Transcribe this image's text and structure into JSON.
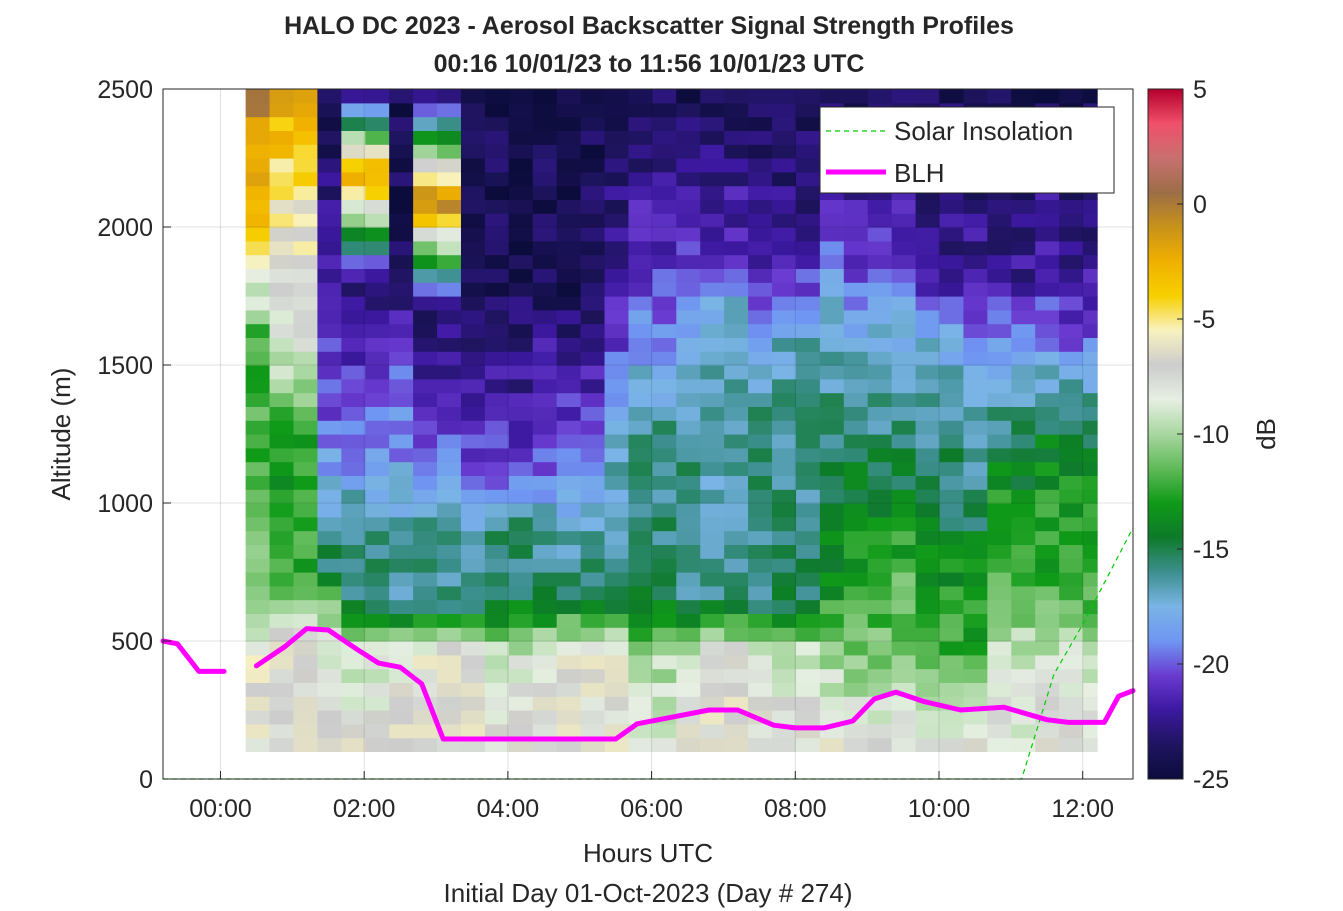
{
  "chart_data": {
    "type": "heatmap",
    "title": "HALO DC 2023 - Aerosol Backscatter Signal Strength Profiles",
    "subtitle": "00:16 10/01/23 to 11:56 10/01/23  UTC",
    "xlabel": "Hours UTC",
    "xlabel2": "Initial Day 01-Oct-2023 (Day # 274)",
    "ylabel": "Altitude (m)",
    "xlim_hours": [
      -0.8,
      12.7
    ],
    "ylim": [
      0,
      2500
    ],
    "x_ticks": [
      {
        "value": 0,
        "label": "00:00"
      },
      {
        "value": 2,
        "label": "02:00"
      },
      {
        "value": 4,
        "label": "04:00"
      },
      {
        "value": 6,
        "label": "06:00"
      },
      {
        "value": 8,
        "label": "08:00"
      },
      {
        "value": 10,
        "label": "10:00"
      },
      {
        "value": 12,
        "label": "12:00"
      }
    ],
    "y_ticks": [
      {
        "value": 0,
        "label": "0"
      },
      {
        "value": 500,
        "label": "500"
      },
      {
        "value": 1000,
        "label": "1000"
      },
      {
        "value": 1500,
        "label": "1500"
      },
      {
        "value": 2000,
        "label": "2000"
      },
      {
        "value": 2500,
        "label": "2500"
      }
    ],
    "grid": true,
    "colorbar": {
      "label": "dB",
      "range": [
        -25,
        5
      ],
      "ticks": [
        {
          "value": 5,
          "label": "5"
        },
        {
          "value": 0,
          "label": "0"
        },
        {
          "value": -5,
          "label": "-5"
        },
        {
          "value": -10,
          "label": "-10"
        },
        {
          "value": -15,
          "label": "-15"
        },
        {
          "value": -20,
          "label": "-20"
        },
        {
          "value": -25,
          "label": "-25"
        }
      ],
      "colors": [
        "#0c0c3c",
        "#1f1460",
        "#3c18a0",
        "#6a3ad0",
        "#6f96f2",
        "#7ab4e6",
        "#3c8f8e",
        "#0d7a2a",
        "#0f9a18",
        "#5fba58",
        "#a8d7a0",
        "#e6efe2",
        "#cccccc",
        "#f8f2c0",
        "#f7d000",
        "#f0b000",
        "#c8921a",
        "#9c6e46",
        "#c87070",
        "#f0506a",
        "#b4002c"
      ]
    },
    "legend": {
      "placement": "top-right",
      "entries": [
        {
          "label": "Solar Insolation",
          "color": "#00cc00",
          "style": "dashed"
        },
        {
          "label": "BLH",
          "color": "#ff00ff",
          "style": "solid"
        }
      ]
    },
    "heatmap_extent": {
      "x_hours": [
        0.35,
        12.2
      ],
      "y_m": [
        100,
        2500
      ],
      "cell_width_hours": 0.333,
      "cell_height_m": 50
    },
    "column_profiles_note": "Per-time-column dB profile control points (altitude m : dB) read from the image",
    "column_profiles": [
      {
        "x": 0.5,
        "profile": [
          [
            100,
            -7
          ],
          [
            400,
            -6
          ],
          [
            550,
            -9
          ],
          [
            1000,
            -12
          ],
          [
            1600,
            -12
          ],
          [
            2000,
            -4
          ],
          [
            2500,
            0
          ]
        ]
      },
      {
        "x": 1.0,
        "profile": [
          [
            100,
            -7
          ],
          [
            500,
            -7
          ],
          [
            700,
            -12
          ],
          [
            1200,
            -13
          ],
          [
            1600,
            -8
          ],
          [
            2000,
            -6
          ],
          [
            2500,
            -2
          ]
        ]
      },
      {
        "x": 1.5,
        "profile": [
          [
            100,
            -7
          ],
          [
            550,
            -9
          ],
          [
            750,
            -15
          ],
          [
            1100,
            -18
          ],
          [
            1300,
            -20
          ],
          [
            1700,
            -21
          ],
          [
            2100,
            -23
          ],
          [
            2500,
            -24
          ]
        ]
      },
      {
        "x": 2.0,
        "profile": [
          [
            100,
            -7
          ],
          [
            450,
            -9
          ],
          [
            650,
            -16
          ],
          [
            950,
            -16
          ],
          [
            1150,
            -19
          ],
          [
            1500,
            -21
          ],
          [
            1800,
            -23
          ],
          [
            2200,
            -1
          ],
          [
            2500,
            -24
          ]
        ]
      },
      {
        "x": 2.5,
        "profile": [
          [
            100,
            -7
          ],
          [
            450,
            -8
          ],
          [
            650,
            -16
          ],
          [
            950,
            -17
          ],
          [
            1200,
            -19
          ],
          [
            1400,
            -19
          ],
          [
            1700,
            -22
          ],
          [
            2000,
            -24
          ],
          [
            2500,
            -24
          ]
        ]
      },
      {
        "x": 3.0,
        "profile": [
          [
            100,
            -7
          ],
          [
            450,
            -7
          ],
          [
            650,
            -16
          ],
          [
            950,
            -16
          ],
          [
            1100,
            -19
          ],
          [
            1400,
            -22
          ],
          [
            1700,
            -23
          ],
          [
            2100,
            0
          ],
          [
            2500,
            -24
          ]
        ]
      },
      {
        "x": 3.5,
        "profile": [
          [
            100,
            -7
          ],
          [
            450,
            -7
          ],
          [
            650,
            -16
          ],
          [
            950,
            -17
          ],
          [
            1100,
            -20
          ],
          [
            1400,
            -22
          ],
          [
            1700,
            -23
          ],
          [
            2000,
            -24
          ],
          [
            2500,
            -24
          ]
        ]
      },
      {
        "x": 4.0,
        "profile": [
          [
            100,
            -7
          ],
          [
            450,
            -9
          ],
          [
            650,
            -15
          ],
          [
            950,
            -16
          ],
          [
            1100,
            -20
          ],
          [
            1400,
            -22
          ],
          [
            1800,
            -24
          ],
          [
            2500,
            -24
          ]
        ]
      },
      {
        "x": 4.5,
        "profile": [
          [
            100,
            -7
          ],
          [
            450,
            -8
          ],
          [
            650,
            -15
          ],
          [
            950,
            -17
          ],
          [
            1100,
            -20
          ],
          [
            1400,
            -21
          ],
          [
            1800,
            -24
          ],
          [
            2500,
            -24
          ]
        ]
      },
      {
        "x": 5.0,
        "profile": [
          [
            100,
            -7
          ],
          [
            450,
            -7
          ],
          [
            650,
            -15
          ],
          [
            950,
            -17
          ],
          [
            1100,
            -19
          ],
          [
            1350,
            -21
          ],
          [
            1800,
            -24
          ],
          [
            2500,
            -24
          ]
        ]
      },
      {
        "x": 5.5,
        "profile": [
          [
            100,
            -7
          ],
          [
            450,
            -7
          ],
          [
            650,
            -15
          ],
          [
            950,
            -17
          ],
          [
            1100,
            -16
          ],
          [
            1400,
            -19
          ],
          [
            1800,
            -22
          ],
          [
            2500,
            -24
          ]
        ]
      },
      {
        "x": 6.0,
        "profile": [
          [
            100,
            -8
          ],
          [
            450,
            -10
          ],
          [
            650,
            -15
          ],
          [
            1000,
            -16
          ],
          [
            1300,
            -16
          ],
          [
            1600,
            -19
          ],
          [
            1900,
            -21
          ],
          [
            2500,
            -24
          ]
        ]
      },
      {
        "x": 6.5,
        "profile": [
          [
            100,
            -7
          ],
          [
            450,
            -9
          ],
          [
            650,
            -16
          ],
          [
            1000,
            -16
          ],
          [
            1300,
            -16
          ],
          [
            1600,
            -18
          ],
          [
            1900,
            -21
          ],
          [
            2500,
            -24
          ]
        ]
      },
      {
        "x": 7.0,
        "profile": [
          [
            100,
            -7
          ],
          [
            450,
            -7
          ],
          [
            650,
            -16
          ],
          [
            1000,
            -17
          ],
          [
            1300,
            -16
          ],
          [
            1700,
            -17
          ],
          [
            1900,
            -21
          ],
          [
            2500,
            -24
          ]
        ]
      },
      {
        "x": 7.5,
        "profile": [
          [
            100,
            -7
          ],
          [
            450,
            -8
          ],
          [
            650,
            -16
          ],
          [
            1000,
            -16
          ],
          [
            1300,
            -16
          ],
          [
            1600,
            -18
          ],
          [
            1900,
            -22
          ],
          [
            2500,
            -24
          ]
        ]
      },
      {
        "x": 8.0,
        "profile": [
          [
            100,
            -7
          ],
          [
            450,
            -9
          ],
          [
            650,
            -15
          ],
          [
            1000,
            -16
          ],
          [
            1300,
            -16
          ],
          [
            1600,
            -17
          ],
          [
            1900,
            -22
          ],
          [
            2500,
            -24
          ]
        ]
      },
      {
        "x": 8.5,
        "profile": [
          [
            100,
            -7
          ],
          [
            450,
            -10
          ],
          [
            650,
            -13
          ],
          [
            1000,
            -15
          ],
          [
            1300,
            -16
          ],
          [
            1600,
            -17
          ],
          [
            1850,
            -19
          ],
          [
            2500,
            -24
          ]
        ]
      },
      {
        "x": 9.0,
        "profile": [
          [
            100,
            -7
          ],
          [
            450,
            -11
          ],
          [
            650,
            -12
          ],
          [
            1000,
            -14
          ],
          [
            1300,
            -16
          ],
          [
            1600,
            -17
          ],
          [
            1800,
            -20
          ],
          [
            2500,
            -24
          ]
        ]
      },
      {
        "x": 9.5,
        "profile": [
          [
            100,
            -7
          ],
          [
            450,
            -11
          ],
          [
            650,
            -11
          ],
          [
            1000,
            -14
          ],
          [
            1300,
            -16
          ],
          [
            1600,
            -17
          ],
          [
            1800,
            -20
          ],
          [
            2500,
            -24
          ]
        ]
      },
      {
        "x": 10.0,
        "profile": [
          [
            100,
            -7
          ],
          [
            450,
            -12
          ],
          [
            650,
            -13
          ],
          [
            1000,
            -15
          ],
          [
            1300,
            -16
          ],
          [
            1600,
            -18
          ],
          [
            1800,
            -22
          ],
          [
            2500,
            -24
          ]
        ]
      },
      {
        "x": 10.5,
        "profile": [
          [
            100,
            -7
          ],
          [
            450,
            -12
          ],
          [
            650,
            -13
          ],
          [
            950,
            -15
          ],
          [
            1300,
            -17
          ],
          [
            1600,
            -19
          ],
          [
            1800,
            -22
          ],
          [
            2500,
            -24
          ]
        ]
      },
      {
        "x": 11.0,
        "profile": [
          [
            100,
            -8
          ],
          [
            450,
            -9
          ],
          [
            650,
            -12
          ],
          [
            1000,
            -13
          ],
          [
            1300,
            -16
          ],
          [
            1600,
            -19
          ],
          [
            1800,
            -22
          ],
          [
            2500,
            -24
          ]
        ]
      },
      {
        "x": 11.5,
        "profile": [
          [
            100,
            -7
          ],
          [
            450,
            -9
          ],
          [
            650,
            -12
          ],
          [
            1000,
            -13
          ],
          [
            1300,
            -15
          ],
          [
            1600,
            -19
          ],
          [
            1800,
            -21
          ],
          [
            2500,
            -24
          ]
        ]
      },
      {
        "x": 12.0,
        "profile": [
          [
            100,
            -7
          ],
          [
            450,
            -9
          ],
          [
            650,
            -12
          ],
          [
            1000,
            -13
          ],
          [
            1300,
            -15
          ],
          [
            1600,
            -20
          ],
          [
            1800,
            -22
          ],
          [
            2500,
            -24
          ]
        ]
      }
    ],
    "series": [
      {
        "name": "BLH",
        "segments": [
          [
            [
              -0.8,
              500
            ],
            [
              -0.6,
              490
            ],
            [
              -0.3,
              390
            ],
            [
              0.05,
              390
            ]
          ],
          [
            [
              0.5,
              410
            ],
            [
              0.9,
              480
            ],
            [
              1.2,
              545
            ],
            [
              1.5,
              540
            ],
            [
              1.9,
              470
            ],
            [
              2.2,
              420
            ],
            [
              2.5,
              405
            ],
            [
              2.8,
              345
            ],
            [
              3.1,
              145
            ],
            [
              5.5,
              145
            ],
            [
              5.8,
              200
            ],
            [
              6.3,
              225
            ],
            [
              6.8,
              250
            ],
            [
              7.2,
              250
            ],
            [
              7.7,
              195
            ],
            [
              8.0,
              185
            ],
            [
              8.4,
              185
            ],
            [
              8.8,
              210
            ],
            [
              9.1,
              290
            ],
            [
              9.4,
              315
            ],
            [
              9.8,
              280
            ],
            [
              10.3,
              250
            ],
            [
              10.6,
              255
            ],
            [
              10.9,
              260
            ],
            [
              11.5,
              215
            ],
            [
              11.8,
              205
            ],
            [
              12.3,
              205
            ],
            [
              12.5,
              300
            ],
            [
              12.7,
              320
            ]
          ]
        ]
      },
      {
        "name": "Solar Insolation",
        "points": [
          [
            -0.8,
            0
          ],
          [
            11.15,
            0
          ],
          [
            11.6,
            380
          ],
          [
            12.0,
            560
          ],
          [
            12.7,
            910
          ]
        ]
      }
    ]
  }
}
